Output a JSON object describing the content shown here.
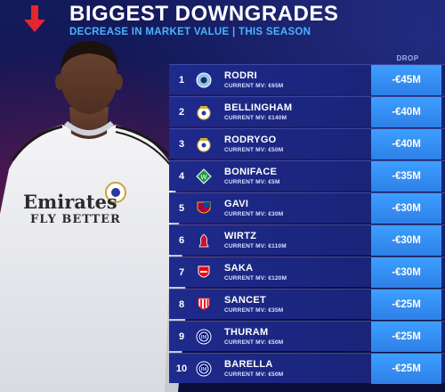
{
  "header": {
    "title": "BIGGEST DOWNGRADES",
    "subtitle": "DECREASE IN MARKET VALUE | THIS SEASON",
    "drop_label": "DROP"
  },
  "player_shirt": {
    "sponsor_line1": "Emirates",
    "sponsor_line2": "FLY BETTER"
  },
  "colors": {
    "accent_arrow": "#e3262f",
    "subtitle": "#4ab3ff",
    "drop_cell": "#3c9fff",
    "row_bg": "#1e2a8c"
  },
  "rows": [
    {
      "rank": "1",
      "name": "RODRI",
      "mv": "CURRENT MV: €65M",
      "drop": "-€45M",
      "crest": "manchester-city-crest-icon"
    },
    {
      "rank": "2",
      "name": "BELLINGHAM",
      "mv": "CURRENT MV: €140M",
      "drop": "-€40M",
      "crest": "real-madrid-crest-icon"
    },
    {
      "rank": "3",
      "name": "RODRYGO",
      "mv": "CURRENT MV: €50M",
      "drop": "-€40M",
      "crest": "real-madrid-crest-icon"
    },
    {
      "rank": "4",
      "name": "BONIFACE",
      "mv": "CURRENT MV: €5M",
      "drop": "-€35M",
      "crest": "werder-bremen-crest-icon"
    },
    {
      "rank": "5",
      "name": "GAVI",
      "mv": "CURRENT MV: €30M",
      "drop": "-€30M",
      "crest": "barcelona-crest-icon"
    },
    {
      "rank": "6",
      "name": "WIRTZ",
      "mv": "CURRENT MV: €110M",
      "drop": "-€30M",
      "crest": "liverpool-crest-icon"
    },
    {
      "rank": "7",
      "name": "SAKA",
      "mv": "CURRENT MV: €120M",
      "drop": "-€30M",
      "crest": "arsenal-crest-icon"
    },
    {
      "rank": "8",
      "name": "SANCET",
      "mv": "CURRENT MV: €35M",
      "drop": "-€25M",
      "crest": "athletic-bilbao-crest-icon"
    },
    {
      "rank": "9",
      "name": "THURAM",
      "mv": "CURRENT MV: €50M",
      "drop": "-€25M",
      "crest": "inter-milan-crest-icon"
    },
    {
      "rank": "10",
      "name": "BARELLA",
      "mv": "CURRENT MV: €50M",
      "drop": "-€25M",
      "crest": "inter-milan-crest-icon"
    }
  ]
}
